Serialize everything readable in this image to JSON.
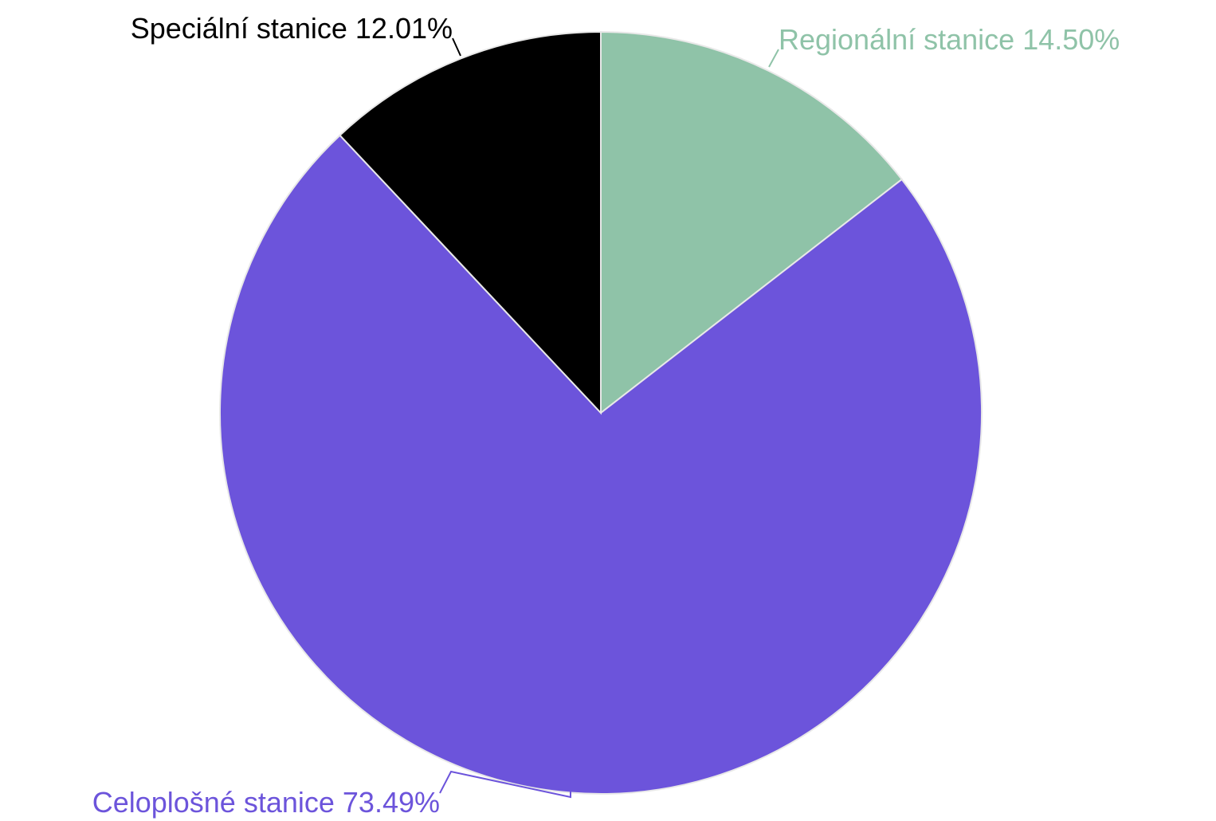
{
  "chart_data": {
    "type": "pie",
    "start_angle_deg": 0,
    "direction": "clockwise",
    "slices": [
      {
        "label": "Regionální stanice 14.50%",
        "name": "Regionální stanice",
        "value": 14.5,
        "color": "#8fc3a8",
        "text_color": "#8fc3a8"
      },
      {
        "label": "Celoplošné stanice 73.49%",
        "name": "Celoplošné stanice",
        "value": 73.49,
        "color": "#6c54db",
        "text_color": "#6c54db"
      },
      {
        "label": "Speciální stanice 12.01%",
        "name": "Speciální stanice",
        "value": 12.01,
        "color": "#000000",
        "text_color": "#000000"
      }
    ],
    "legend": "none",
    "labels": "outside with leader lines"
  }
}
